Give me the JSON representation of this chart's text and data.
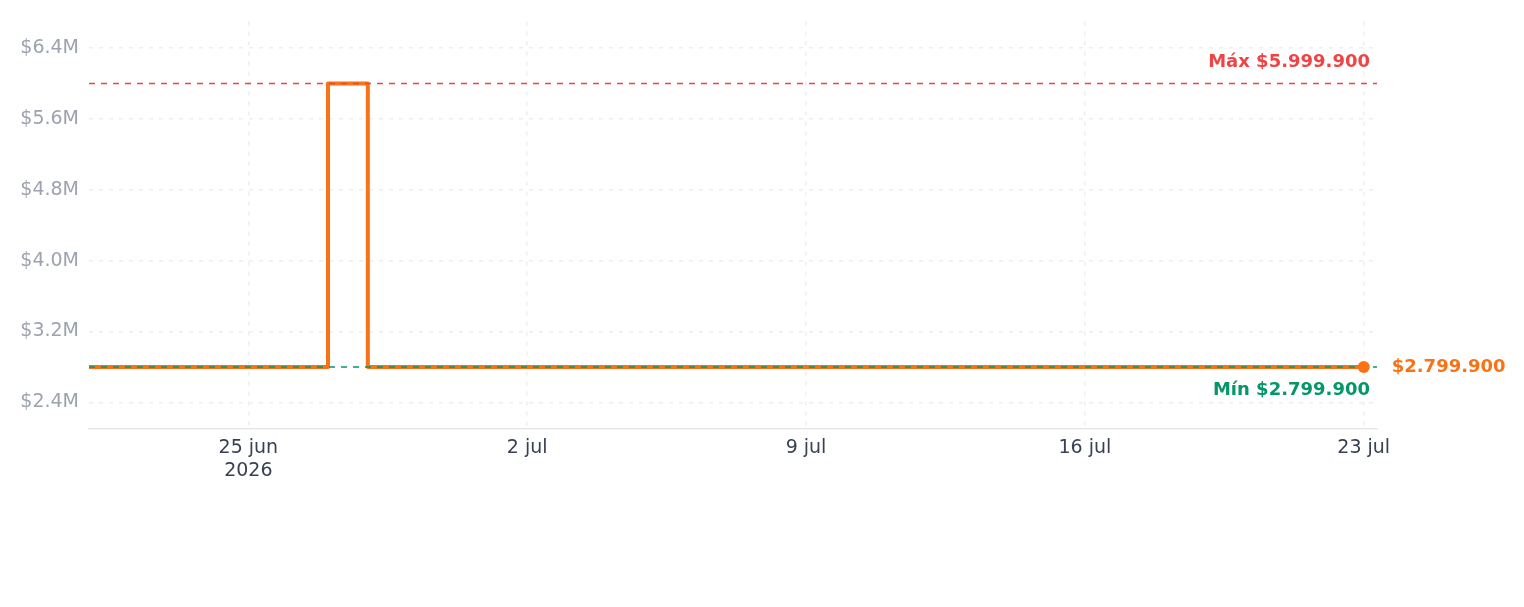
{
  "chart_data": {
    "type": "step",
    "x": [
      "2026-06-21",
      "2026-06-27",
      "2026-06-28",
      "2026-07-23"
    ],
    "series": [
      {
        "color": "#f97316",
        "values": [
          2799900,
          5999900,
          2799900,
          2799900
        ]
      }
    ],
    "xlim": [
      "2026-06-21",
      "2026-07-23T08:00"
    ],
    "xticks": [
      {
        "value": "2026-06-25",
        "label": "25 jun\n2026"
      },
      {
        "value": "2026-07-02",
        "label": "2 jul"
      },
      {
        "value": "2026-07-09",
        "label": "9 jul"
      },
      {
        "value": "2026-07-16",
        "label": "16 jul"
      },
      {
        "value": "2026-07-23",
        "label": "23 jul"
      }
    ],
    "ylim": [
      2100000,
      6700000
    ],
    "yticks": [
      {
        "value": 2400000,
        "label": "$2.4M"
      },
      {
        "value": 3200000,
        "label": "$3.2M"
      },
      {
        "value": 4000000,
        "label": "$4.0M"
      },
      {
        "value": 4800000,
        "label": "$4.8M"
      },
      {
        "value": 5600000,
        "label": "$5.6M"
      },
      {
        "value": 6400000,
        "label": "$6.4M"
      }
    ],
    "ref_lines": [
      {
        "axis": "y",
        "value": 5999900,
        "label": "Máx $5.999.900",
        "color": "#ef4444",
        "line_style": "dashed"
      },
      {
        "axis": "y",
        "value": 2799900,
        "label": "Mín $2.799.900",
        "color": "#059669",
        "line_style": "dashed"
      }
    ],
    "annotations": [
      {
        "text": "$2.799.900",
        "x": "2026-07-23",
        "y": 2799900
      }
    ],
    "grid": true,
    "marker": "none",
    "line_style": "solid",
    "legend": false
  }
}
